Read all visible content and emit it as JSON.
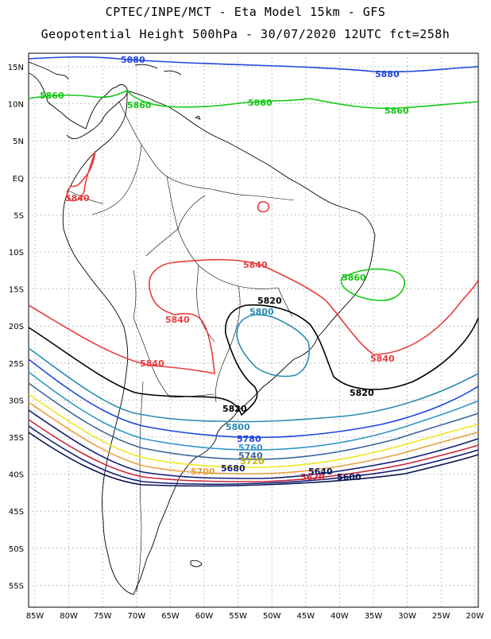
{
  "header": {
    "line1": "CPTEC/INPE/MCT  -   Eta Model 15km  -  GFS",
    "line2": "Geopotential Height 500hPa  -  30/07/2020 12UTC fct=258h"
  },
  "axes": {
    "lat_labels": [
      "15N",
      "10N",
      "5N",
      "EQ",
      "5S",
      "10S",
      "15S",
      "20S",
      "25S",
      "30S",
      "35S",
      "40S",
      "45S",
      "50S",
      "55S"
    ],
    "lon_labels": [
      "85W",
      "80W",
      "75W",
      "70W",
      "65W",
      "60W",
      "55W",
      "50W",
      "45W",
      "40W",
      "35W",
      "30W",
      "25W",
      "20W"
    ]
  },
  "colors": {
    "c5860_green": "#12c812",
    "c5880_blue": "#1e46dc",
    "c5840_red": "#e83c3c",
    "c5820_black": "#000000",
    "c5800_teal": "#2a8cb4",
    "c5780_blue": "#1e46dc",
    "c5760_teal": "#3296c8",
    "c5740_slate": "#3c64a0",
    "c5720_yellow": "#f0e61e",
    "c5700_orange": "#e8a040",
    "c5680_navy": "#141e78",
    "c5660_crimson": "#c8283c",
    "c5600_navy": "#0a1450",
    "coast": "#000000",
    "grid": "#9a9a9a"
  },
  "contour_labels": [
    {
      "id": "l5880a",
      "text": "5880"
    },
    {
      "id": "l5880b",
      "text": "5880"
    },
    {
      "id": "l5860a",
      "text": "5860"
    },
    {
      "id": "l5860b",
      "text": "5860"
    },
    {
      "id": "l5860c",
      "text": "5860"
    },
    {
      "id": "l5860d",
      "text": "5860"
    },
    {
      "id": "l5860e",
      "text": "5860"
    },
    {
      "id": "l5840a",
      "text": "5840"
    },
    {
      "id": "l5840b",
      "text": "5840"
    },
    {
      "id": "l5840c",
      "text": "5840"
    },
    {
      "id": "l5840d",
      "text": "5840"
    },
    {
      "id": "l5840e",
      "text": "5840"
    },
    {
      "id": "l5820a",
      "text": "5820"
    },
    {
      "id": "l5820b",
      "text": "5820"
    },
    {
      "id": "l5820c",
      "text": "5820"
    },
    {
      "id": "l5800a",
      "text": "5800"
    },
    {
      "id": "l5800b",
      "text": "5800"
    },
    {
      "id": "l5780",
      "text": "5780"
    },
    {
      "id": "l5760",
      "text": "5760"
    },
    {
      "id": "l5740",
      "text": "5740"
    },
    {
      "id": "l5720",
      "text": "5720"
    },
    {
      "id": "l5700",
      "text": "5700"
    },
    {
      "id": "l5680",
      "text": "5680"
    },
    {
      "id": "l5640",
      "text": "5640"
    },
    {
      "id": "l5620",
      "text": "5620"
    },
    {
      "id": "l5600",
      "text": "5600"
    }
  ]
}
